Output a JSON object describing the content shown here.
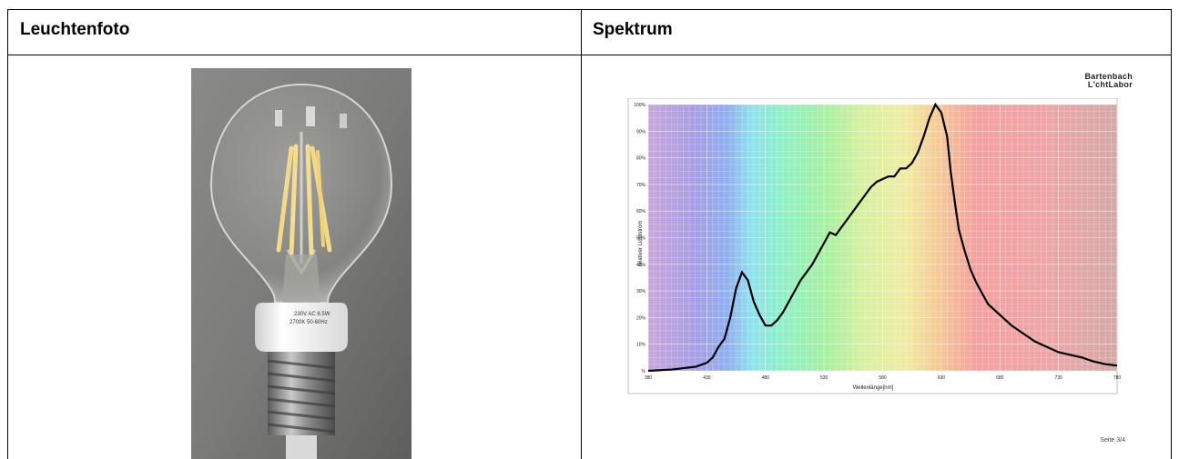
{
  "headers": {
    "left": "Leuchtenfoto",
    "right": "Spektrum"
  },
  "photo": {
    "label_line1": "230V AC 6.5W",
    "label_line2": "2700K 50-60Hz"
  },
  "brand": {
    "line1": "Bartenbach",
    "line2": "L'chtLabor"
  },
  "page_label": "Seite 3/4",
  "chart_data": {
    "type": "line",
    "xlabel": "Wellenlänge[nm]",
    "ylabel": "relativer Lichtstrom",
    "xlim": [
      380,
      780
    ],
    "ylim": [
      0,
      100
    ],
    "x_ticks": [
      380,
      430,
      480,
      530,
      580,
      630,
      680,
      730,
      780
    ],
    "y_ticks": [
      "%",
      "10%",
      "20%",
      "30%",
      "40%",
      "50%",
      "60%",
      "70%",
      "80%",
      "90%",
      "100%"
    ],
    "grid": true,
    "background": "visible spectrum color bands",
    "series": [
      {
        "color": "#000000",
        "x": [
          380,
          400,
          410,
          420,
          430,
          435,
          440,
          445,
          450,
          455,
          460,
          465,
          470,
          475,
          480,
          485,
          490,
          495,
          500,
          505,
          510,
          515,
          520,
          525,
          530,
          535,
          540,
          545,
          550,
          555,
          560,
          565,
          570,
          575,
          580,
          585,
          590,
          595,
          600,
          605,
          610,
          615,
          620,
          625,
          630,
          635,
          638,
          642,
          645,
          650,
          655,
          660,
          665,
          670,
          680,
          690,
          700,
          710,
          720,
          730,
          740,
          750,
          760,
          770,
          780
        ],
        "y": [
          0,
          0.5,
          1,
          1.5,
          3,
          5,
          9,
          12,
          20,
          31,
          37,
          34,
          26,
          21,
          17,
          17,
          19,
          22,
          26,
          30,
          34,
          37,
          40,
          44,
          48,
          52,
          51,
          54,
          57,
          60,
          63,
          66,
          69,
          71,
          72,
          73,
          73,
          76,
          76,
          78,
          82,
          88,
          95,
          100,
          97,
          88,
          75,
          62,
          53,
          45,
          38,
          33,
          29,
          25,
          21,
          17,
          14,
          11,
          9,
          7,
          6,
          5,
          3.5,
          2.5,
          2
        ]
      }
    ]
  }
}
